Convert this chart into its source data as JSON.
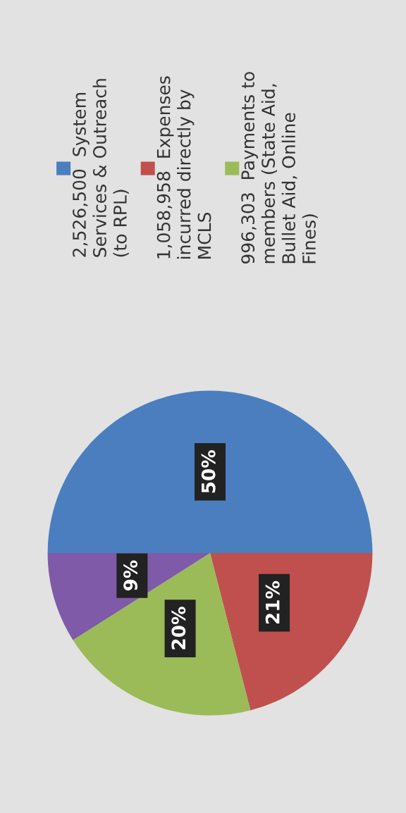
{
  "chart_data": {
    "type": "pie",
    "categories": [
      "2,526,500  System Services & Outreach (to RPL)",
      "1,058,958  Expenses incurred directly by MCLS",
      "996,303  Payments to members (State Aid, Bullet Aid, Online Fines)",
      null
    ],
    "values": [
      50,
      21,
      20,
      9
    ],
    "value_labels": [
      "50%",
      "21%",
      "20%",
      "9%"
    ],
    "colors": [
      "#4a7ebf",
      "#c0504d",
      "#9bbb59",
      "#7f5aa8"
    ],
    "legend": "top"
  }
}
